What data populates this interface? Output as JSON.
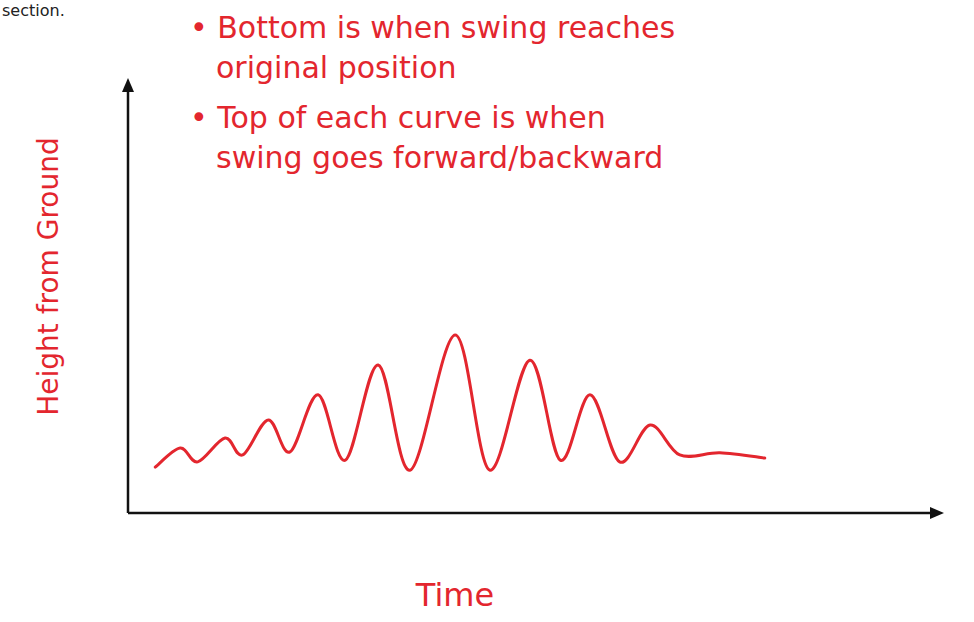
{
  "chart_data": {
    "type": "line",
    "header_fragment": "section.",
    "annotations": [
      {
        "lines": [
          "• Bottom is when swing reaches",
          "original position"
        ]
      },
      {
        "lines": [
          "• Top of each curve is when",
          "swing goes forward/backward"
        ]
      }
    ],
    "xlabel": "Time",
    "ylabel": "Height from Ground",
    "x": [
      3.4,
      6.5,
      8.7,
      12.1,
      14.3,
      17.5,
      20.2,
      23.7,
      27.1,
      31.2,
      35.2,
      40.8,
      45.1,
      50.1,
      53.9,
      57.6,
      61.3,
      65.1,
      68.8,
      73.8,
      79.4
    ],
    "values": [
      10.6,
      15.0,
      11.8,
      17.3,
      13.4,
      21.5,
      14.1,
      27.3,
      12.2,
      34.2,
      9.9,
      41.1,
      9.9,
      35.3,
      12.2,
      27.3,
      11.8,
      20.3,
      13.4,
      13.9,
      12.7
    ],
    "color": "#e3262e",
    "xlim": [
      0,
      100
    ],
    "ylim": [
      0,
      100
    ],
    "tick_labels": false,
    "grid": false
  }
}
